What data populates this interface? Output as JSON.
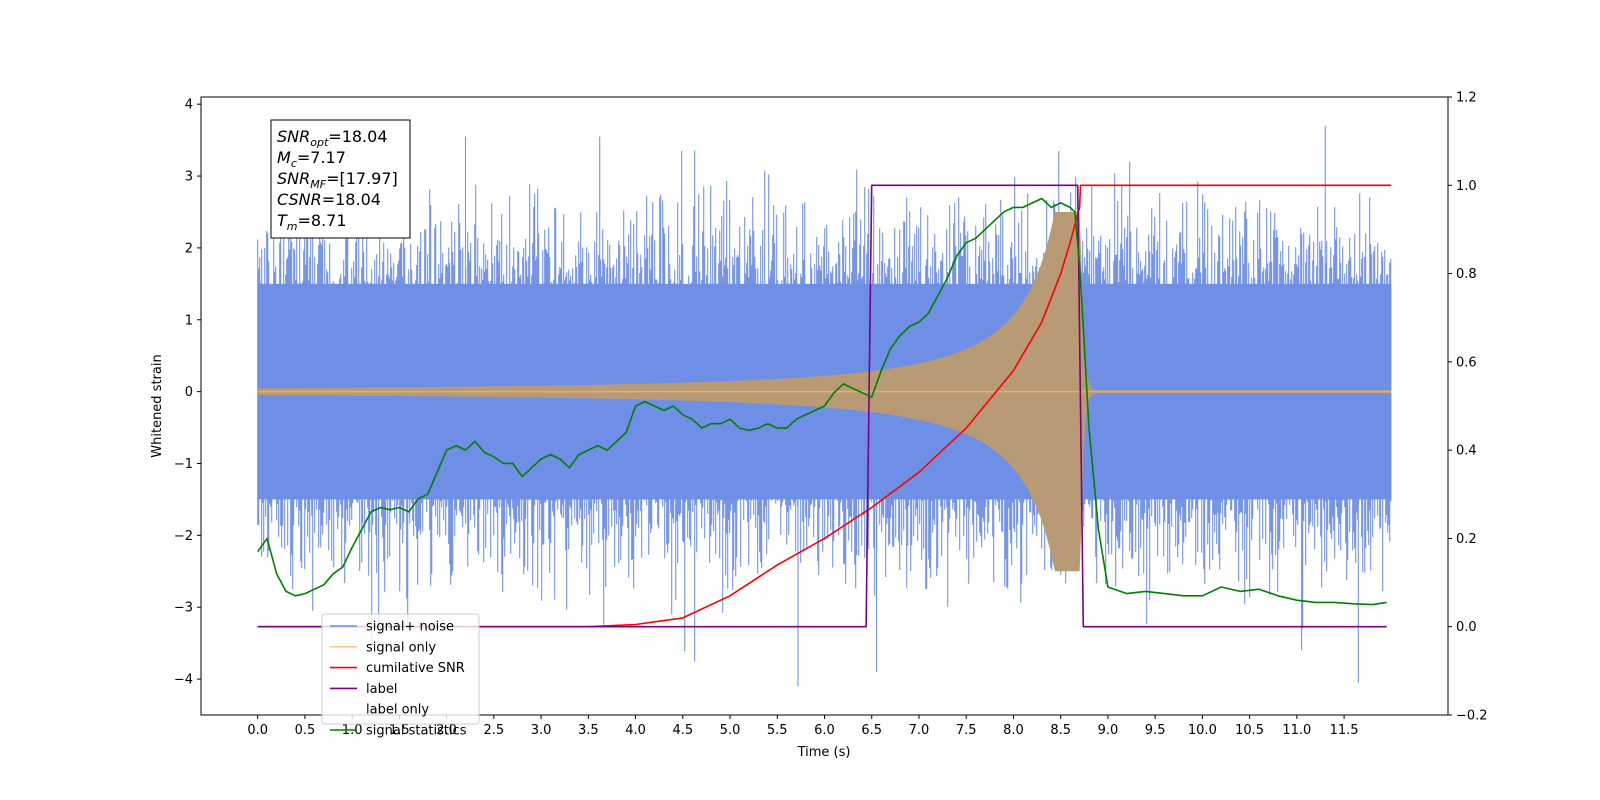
{
  "chart_data": {
    "type": "line",
    "xlabel": "Time (s)",
    "ylabel": "Whitened strain",
    "xlim": [
      -0.6,
      12.6
    ],
    "ylim": [
      -4.5,
      4.1
    ],
    "y2lim": [
      -0.2,
      1.2
    ],
    "xticks": [
      "0.0",
      "0.5",
      "1.0",
      "1.5",
      "2.0",
      "2.5",
      "3.0",
      "3.5",
      "4.0",
      "4.5",
      "5.0",
      "5.5",
      "6.0",
      "6.5",
      "7.0",
      "7.5",
      "8.0",
      "8.5",
      "9.0",
      "9.5",
      "10.0",
      "10.5",
      "11.0",
      "11.5"
    ],
    "yticks": [
      "4",
      "3",
      "2",
      "1",
      "0",
      "−1",
      "−2",
      "−3",
      "−4"
    ],
    "y2ticks": [
      "1.2",
      "1.0",
      "0.8",
      "0.6",
      "0.4",
      "0.2",
      "0.0",
      "−0.2"
    ],
    "grid": false,
    "legend_position": "lower-left",
    "legend": [
      "signal+ noise",
      "signal only",
      "cumilative SNR",
      "label",
      "label only",
      "signal statistics"
    ],
    "annotation": [
      {
        "name": "SNR",
        "sub": "opt",
        "value": "18.04"
      },
      {
        "name": "M",
        "sub": "c",
        "value": "7.17"
      },
      {
        "name": "SNR",
        "sub": "MF",
        "value": "[17.97]"
      },
      {
        "name": "CSNR",
        "sub": "",
        "value": "18.04"
      },
      {
        "name": "T",
        "sub": "m",
        "value": "8.71"
      }
    ],
    "series": [
      {
        "name": "signal+ noise",
        "axis": "left",
        "color": "#6f8fe6",
        "x_range": [
          0.0,
          12.0
        ],
        "envelope": [
          -1.5,
          1.5
        ],
        "extremes": [
          -4.1,
          3.7
        ]
      },
      {
        "name": "signal only",
        "axis": "left",
        "color": "#e0a060",
        "x_range": [
          0.0,
          12.0
        ],
        "peak_time": 8.71,
        "peak_amplitude": 2.5
      },
      {
        "name": "cumilative SNR",
        "axis": "right",
        "color": "#ff0000",
        "x": [
          0.0,
          3.5,
          4.0,
          4.5,
          5.0,
          5.5,
          6.0,
          6.5,
          7.0,
          7.5,
          8.0,
          8.3,
          8.5,
          8.6,
          8.7,
          8.71,
          12.0
        ],
        "y": [
          0.0,
          0.0,
          0.005,
          0.02,
          0.07,
          0.14,
          0.2,
          0.27,
          0.35,
          0.45,
          0.58,
          0.69,
          0.8,
          0.87,
          0.95,
          1.0,
          1.0
        ]
      },
      {
        "name": "label",
        "axis": "right",
        "color": "#800080",
        "x": [
          0.0,
          6.44,
          6.5,
          8.68,
          8.74,
          11.95
        ],
        "y": [
          0.0,
          0.0,
          1.0,
          1.0,
          0.0,
          0.0
        ]
      },
      {
        "name": "signal statistics",
        "axis": "right",
        "color": "#008000",
        "x": [
          0.0,
          0.1,
          0.2,
          0.3,
          0.4,
          0.5,
          0.6,
          0.7,
          0.8,
          0.9,
          1.0,
          1.1,
          1.2,
          1.3,
          1.4,
          1.5,
          1.6,
          1.7,
          1.8,
          1.9,
          2.0,
          2.1,
          2.2,
          2.3,
          2.4,
          2.5,
          2.6,
          2.7,
          2.8,
          2.9,
          3.0,
          3.1,
          3.2,
          3.3,
          3.4,
          3.5,
          3.6,
          3.7,
          3.8,
          3.9,
          4.0,
          4.1,
          4.2,
          4.3,
          4.4,
          4.5,
          4.6,
          4.7,
          4.8,
          4.9,
          5.0,
          5.1,
          5.2,
          5.3,
          5.4,
          5.5,
          5.6,
          5.7,
          5.8,
          5.9,
          6.0,
          6.1,
          6.2,
          6.3,
          6.4,
          6.5,
          6.6,
          6.7,
          6.8,
          6.9,
          7.0,
          7.1,
          7.2,
          7.3,
          7.4,
          7.5,
          7.6,
          7.7,
          7.8,
          7.9,
          8.0,
          8.1,
          8.2,
          8.3,
          8.4,
          8.5,
          8.6,
          8.65,
          8.7,
          8.8,
          8.9,
          9.0,
          9.2,
          9.4,
          9.6,
          9.8,
          10.0,
          10.2,
          10.4,
          10.6,
          10.8,
          11.0,
          11.2,
          11.4,
          11.6,
          11.8,
          11.95
        ],
        "y": [
          0.17,
          0.2,
          0.12,
          0.08,
          0.07,
          0.075,
          0.085,
          0.095,
          0.12,
          0.135,
          0.18,
          0.22,
          0.26,
          0.27,
          0.265,
          0.27,
          0.26,
          0.29,
          0.3,
          0.35,
          0.4,
          0.41,
          0.4,
          0.42,
          0.395,
          0.385,
          0.37,
          0.37,
          0.34,
          0.36,
          0.38,
          0.39,
          0.38,
          0.36,
          0.39,
          0.4,
          0.41,
          0.4,
          0.42,
          0.44,
          0.5,
          0.51,
          0.5,
          0.49,
          0.5,
          0.48,
          0.47,
          0.45,
          0.46,
          0.46,
          0.47,
          0.45,
          0.445,
          0.45,
          0.46,
          0.45,
          0.45,
          0.47,
          0.48,
          0.49,
          0.5,
          0.53,
          0.55,
          0.54,
          0.53,
          0.52,
          0.58,
          0.63,
          0.66,
          0.68,
          0.69,
          0.71,
          0.75,
          0.79,
          0.84,
          0.87,
          0.88,
          0.9,
          0.92,
          0.94,
          0.95,
          0.95,
          0.96,
          0.97,
          0.95,
          0.96,
          0.95,
          0.94,
          0.82,
          0.45,
          0.22,
          0.09,
          0.075,
          0.08,
          0.075,
          0.07,
          0.07,
          0.09,
          0.08,
          0.085,
          0.07,
          0.06,
          0.055,
          0.055,
          0.052,
          0.05,
          0.055
        ]
      }
    ]
  }
}
